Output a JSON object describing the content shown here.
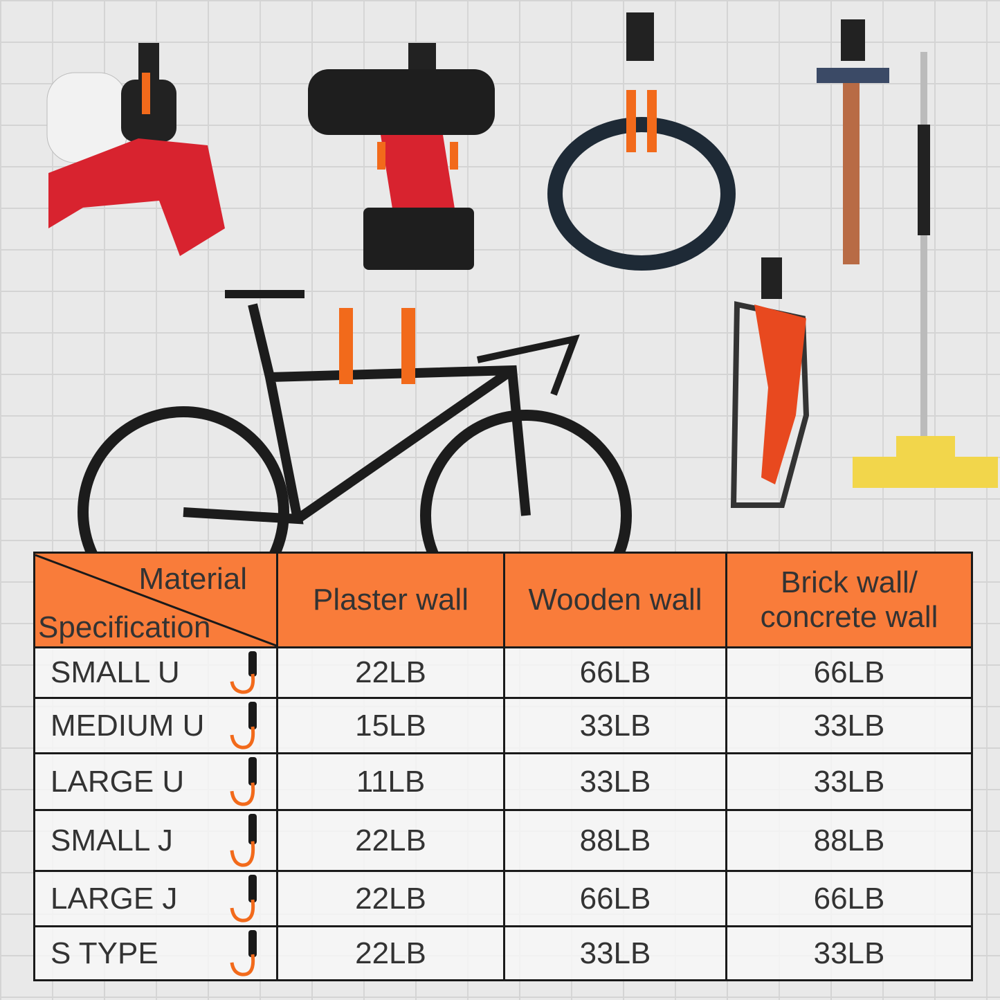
{
  "colors": {
    "header": "#f97c3a",
    "text": "#333333",
    "hook": "#f26a1b",
    "border": "#1a1a1a"
  },
  "table": {
    "corner": {
      "top": "Material",
      "bottom": "Specification"
    },
    "columns": [
      "Plaster wall",
      "Wooden wall",
      "Brick wall/ concrete wall"
    ],
    "rows": [
      {
        "spec": "SMALL U",
        "icon": "small-u-hook-icon",
        "values": [
          "22LB",
          "66LB",
          "66LB"
        ]
      },
      {
        "spec": "MEDIUM U",
        "icon": "medium-u-hook-icon",
        "values": [
          "15LB",
          "33LB",
          "33LB"
        ]
      },
      {
        "spec": "LARGE U",
        "icon": "large-u-hook-icon",
        "values": [
          "11LB",
          "33LB",
          "33LB"
        ]
      },
      {
        "spec": "SMALL J",
        "icon": "small-j-hook-icon",
        "values": [
          "22LB",
          "88LB",
          "88LB"
        ]
      },
      {
        "spec": "LARGE J",
        "icon": "large-j-hook-icon",
        "values": [
          "22LB",
          "66LB",
          "66LB"
        ]
      },
      {
        "spec": "S TYPE",
        "icon": "s-hook-icon",
        "values": [
          "22LB",
          "33LB",
          "33LB"
        ]
      }
    ]
  }
}
